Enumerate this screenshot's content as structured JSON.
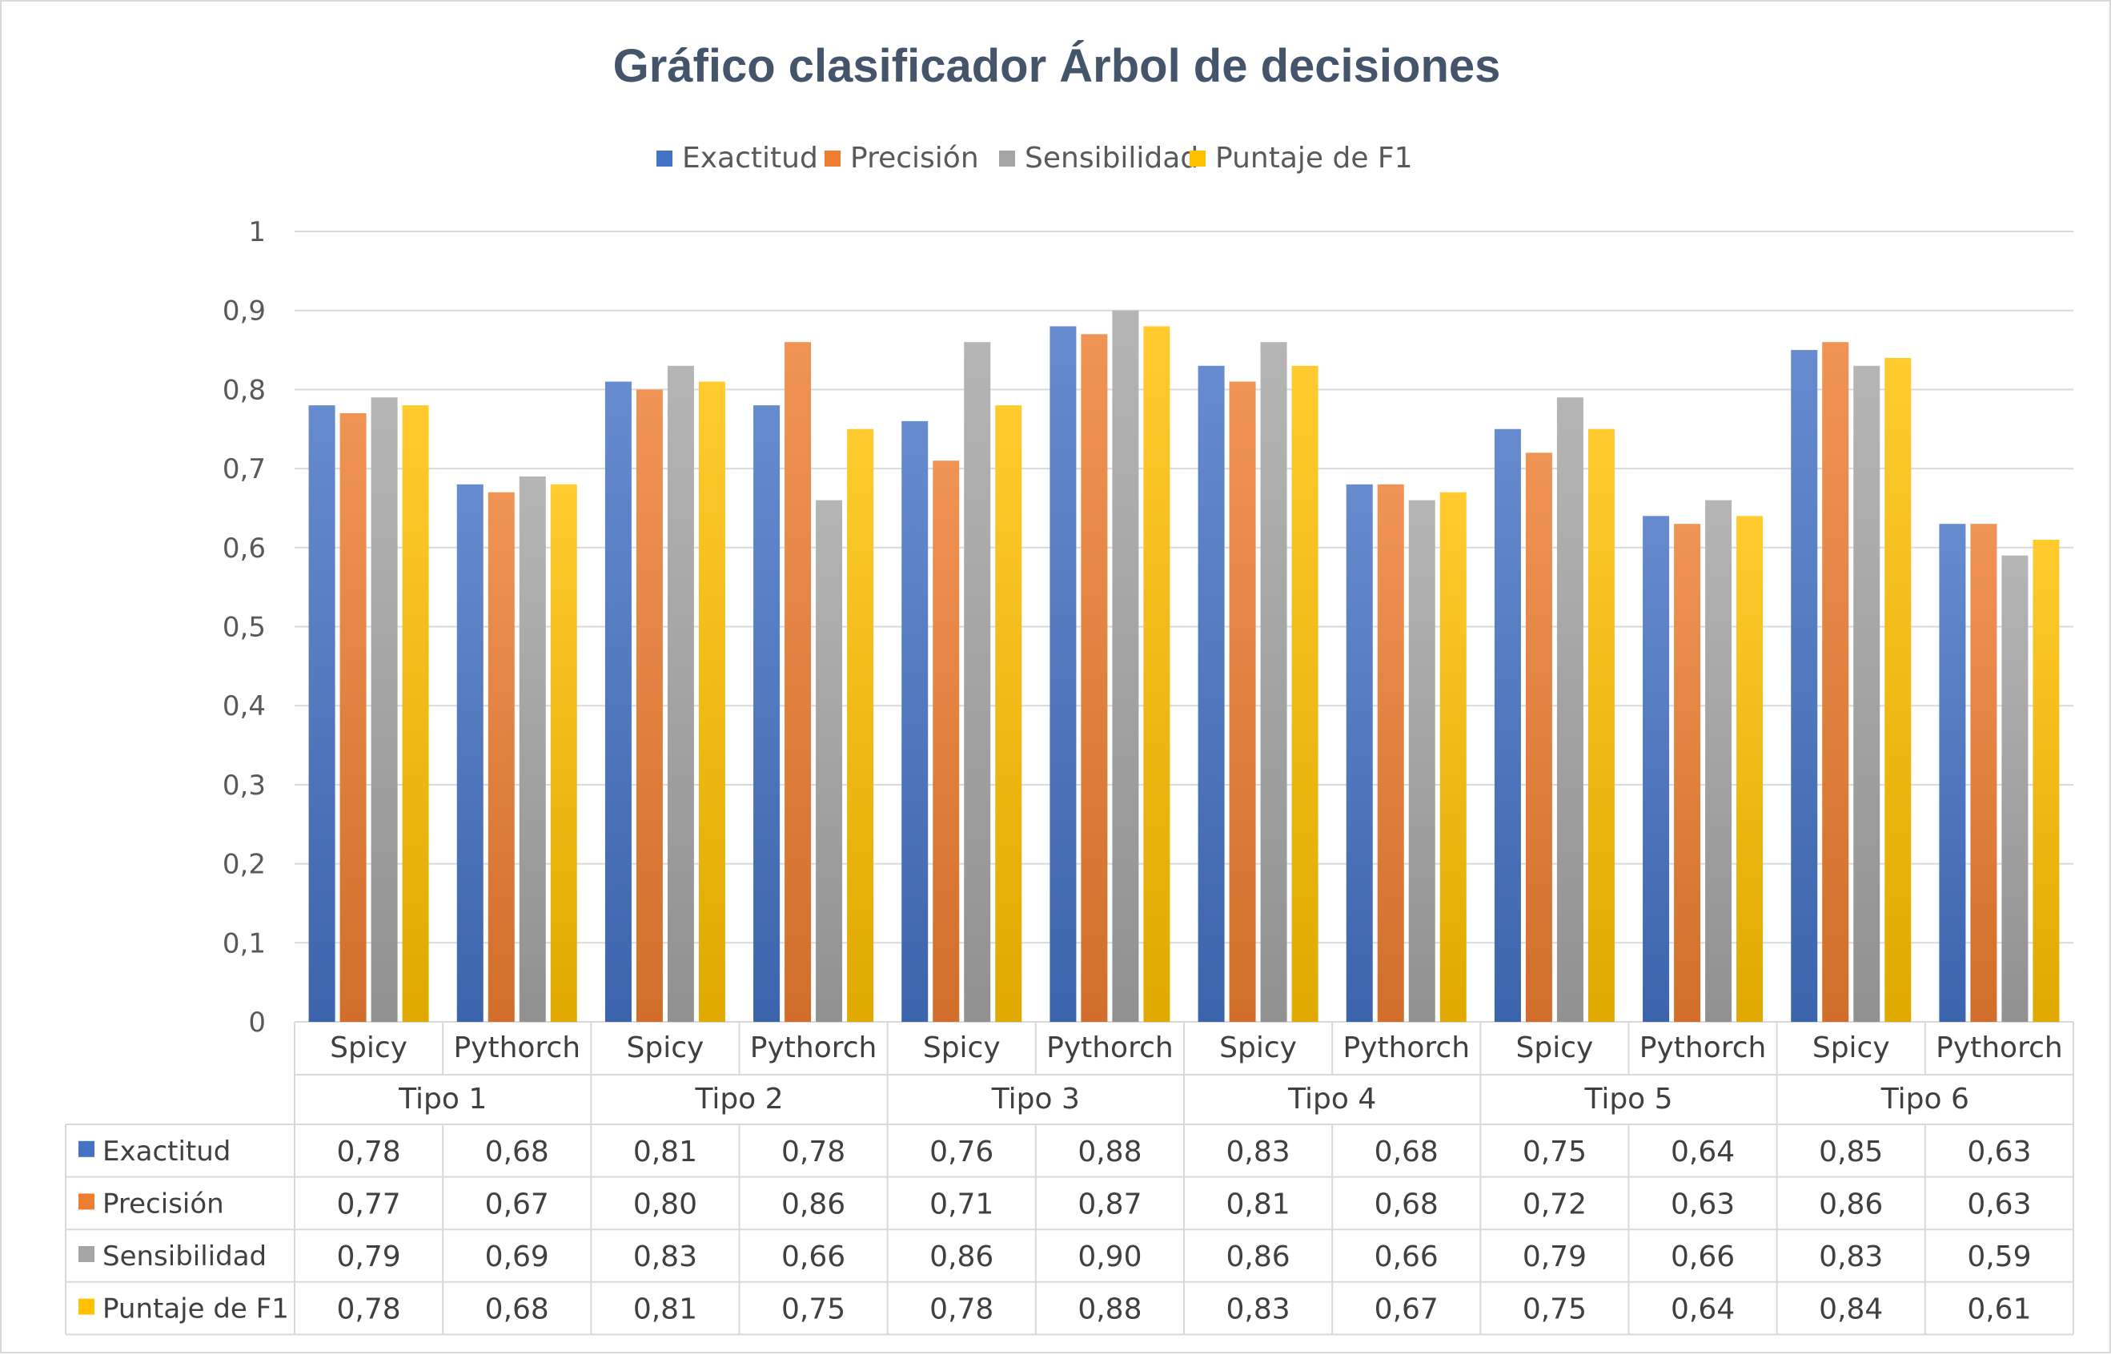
{
  "chart_data": {
    "type": "bar",
    "title": "Gráfico clasificador Árbol de decisiones",
    "legend_position": "top",
    "gridlines": true,
    "ylim": [
      0,
      1
    ],
    "y_ticks": [
      "0",
      "0,1",
      "0,2",
      "0,3",
      "0,4",
      "0,5",
      "0,6",
      "0,7",
      "0,8",
      "0,9",
      "1"
    ],
    "groups": [
      "Tipo 1",
      "Tipo 2",
      "Tipo 3",
      "Tipo 4",
      "Tipo 5",
      "Tipo 6"
    ],
    "subcategories": [
      "Spicy",
      "Pythorch"
    ],
    "categories": [
      "Tipo 1 Spicy",
      "Tipo 1 Pythorch",
      "Tipo 2 Spicy",
      "Tipo 2 Pythorch",
      "Tipo 3 Spicy",
      "Tipo 3 Pythorch",
      "Tipo 4 Spicy",
      "Tipo 4 Pythorch",
      "Tipo 5 Spicy",
      "Tipo 5 Pythorch",
      "Tipo 6 Spicy",
      "Tipo 6 Pythorch"
    ],
    "series": [
      {
        "name": "Exactitud",
        "color": "#4472c4",
        "values": [
          0.78,
          0.68,
          0.81,
          0.78,
          0.76,
          0.88,
          0.83,
          0.68,
          0.75,
          0.64,
          0.85,
          0.63
        ],
        "labels": [
          "0,78",
          "0,68",
          "0,81",
          "0,78",
          "0,76",
          "0,88",
          "0,83",
          "0,68",
          "0,75",
          "0,64",
          "0,85",
          "0,63"
        ]
      },
      {
        "name": "Precisión",
        "color": "#ed7d31",
        "values": [
          0.77,
          0.67,
          0.8,
          0.86,
          0.71,
          0.87,
          0.81,
          0.68,
          0.72,
          0.63,
          0.86,
          0.63
        ],
        "labels": [
          "0,77",
          "0,67",
          "0,80",
          "0,86",
          "0,71",
          "0,87",
          "0,81",
          "0,68",
          "0,72",
          "0,63",
          "0,86",
          "0,63"
        ]
      },
      {
        "name": "Sensibilidad",
        "color": "#a5a5a5",
        "values": [
          0.79,
          0.69,
          0.83,
          0.66,
          0.86,
          0.9,
          0.86,
          0.66,
          0.79,
          0.66,
          0.83,
          0.59
        ],
        "labels": [
          "0,79",
          "0,69",
          "0,83",
          "0,66",
          "0,86",
          "0,90",
          "0,86",
          "0,66",
          "0,79",
          "0,66",
          "0,83",
          "0,59"
        ]
      },
      {
        "name": "Puntaje de F1",
        "color": "#ffc000",
        "values": [
          0.78,
          0.68,
          0.81,
          0.75,
          0.78,
          0.88,
          0.83,
          0.67,
          0.75,
          0.64,
          0.84,
          0.61
        ],
        "labels": [
          "0,78",
          "0,68",
          "0,81",
          "0,75",
          "0,78",
          "0,88",
          "0,83",
          "0,67",
          "0,75",
          "0,64",
          "0,84",
          "0,61"
        ]
      }
    ]
  }
}
